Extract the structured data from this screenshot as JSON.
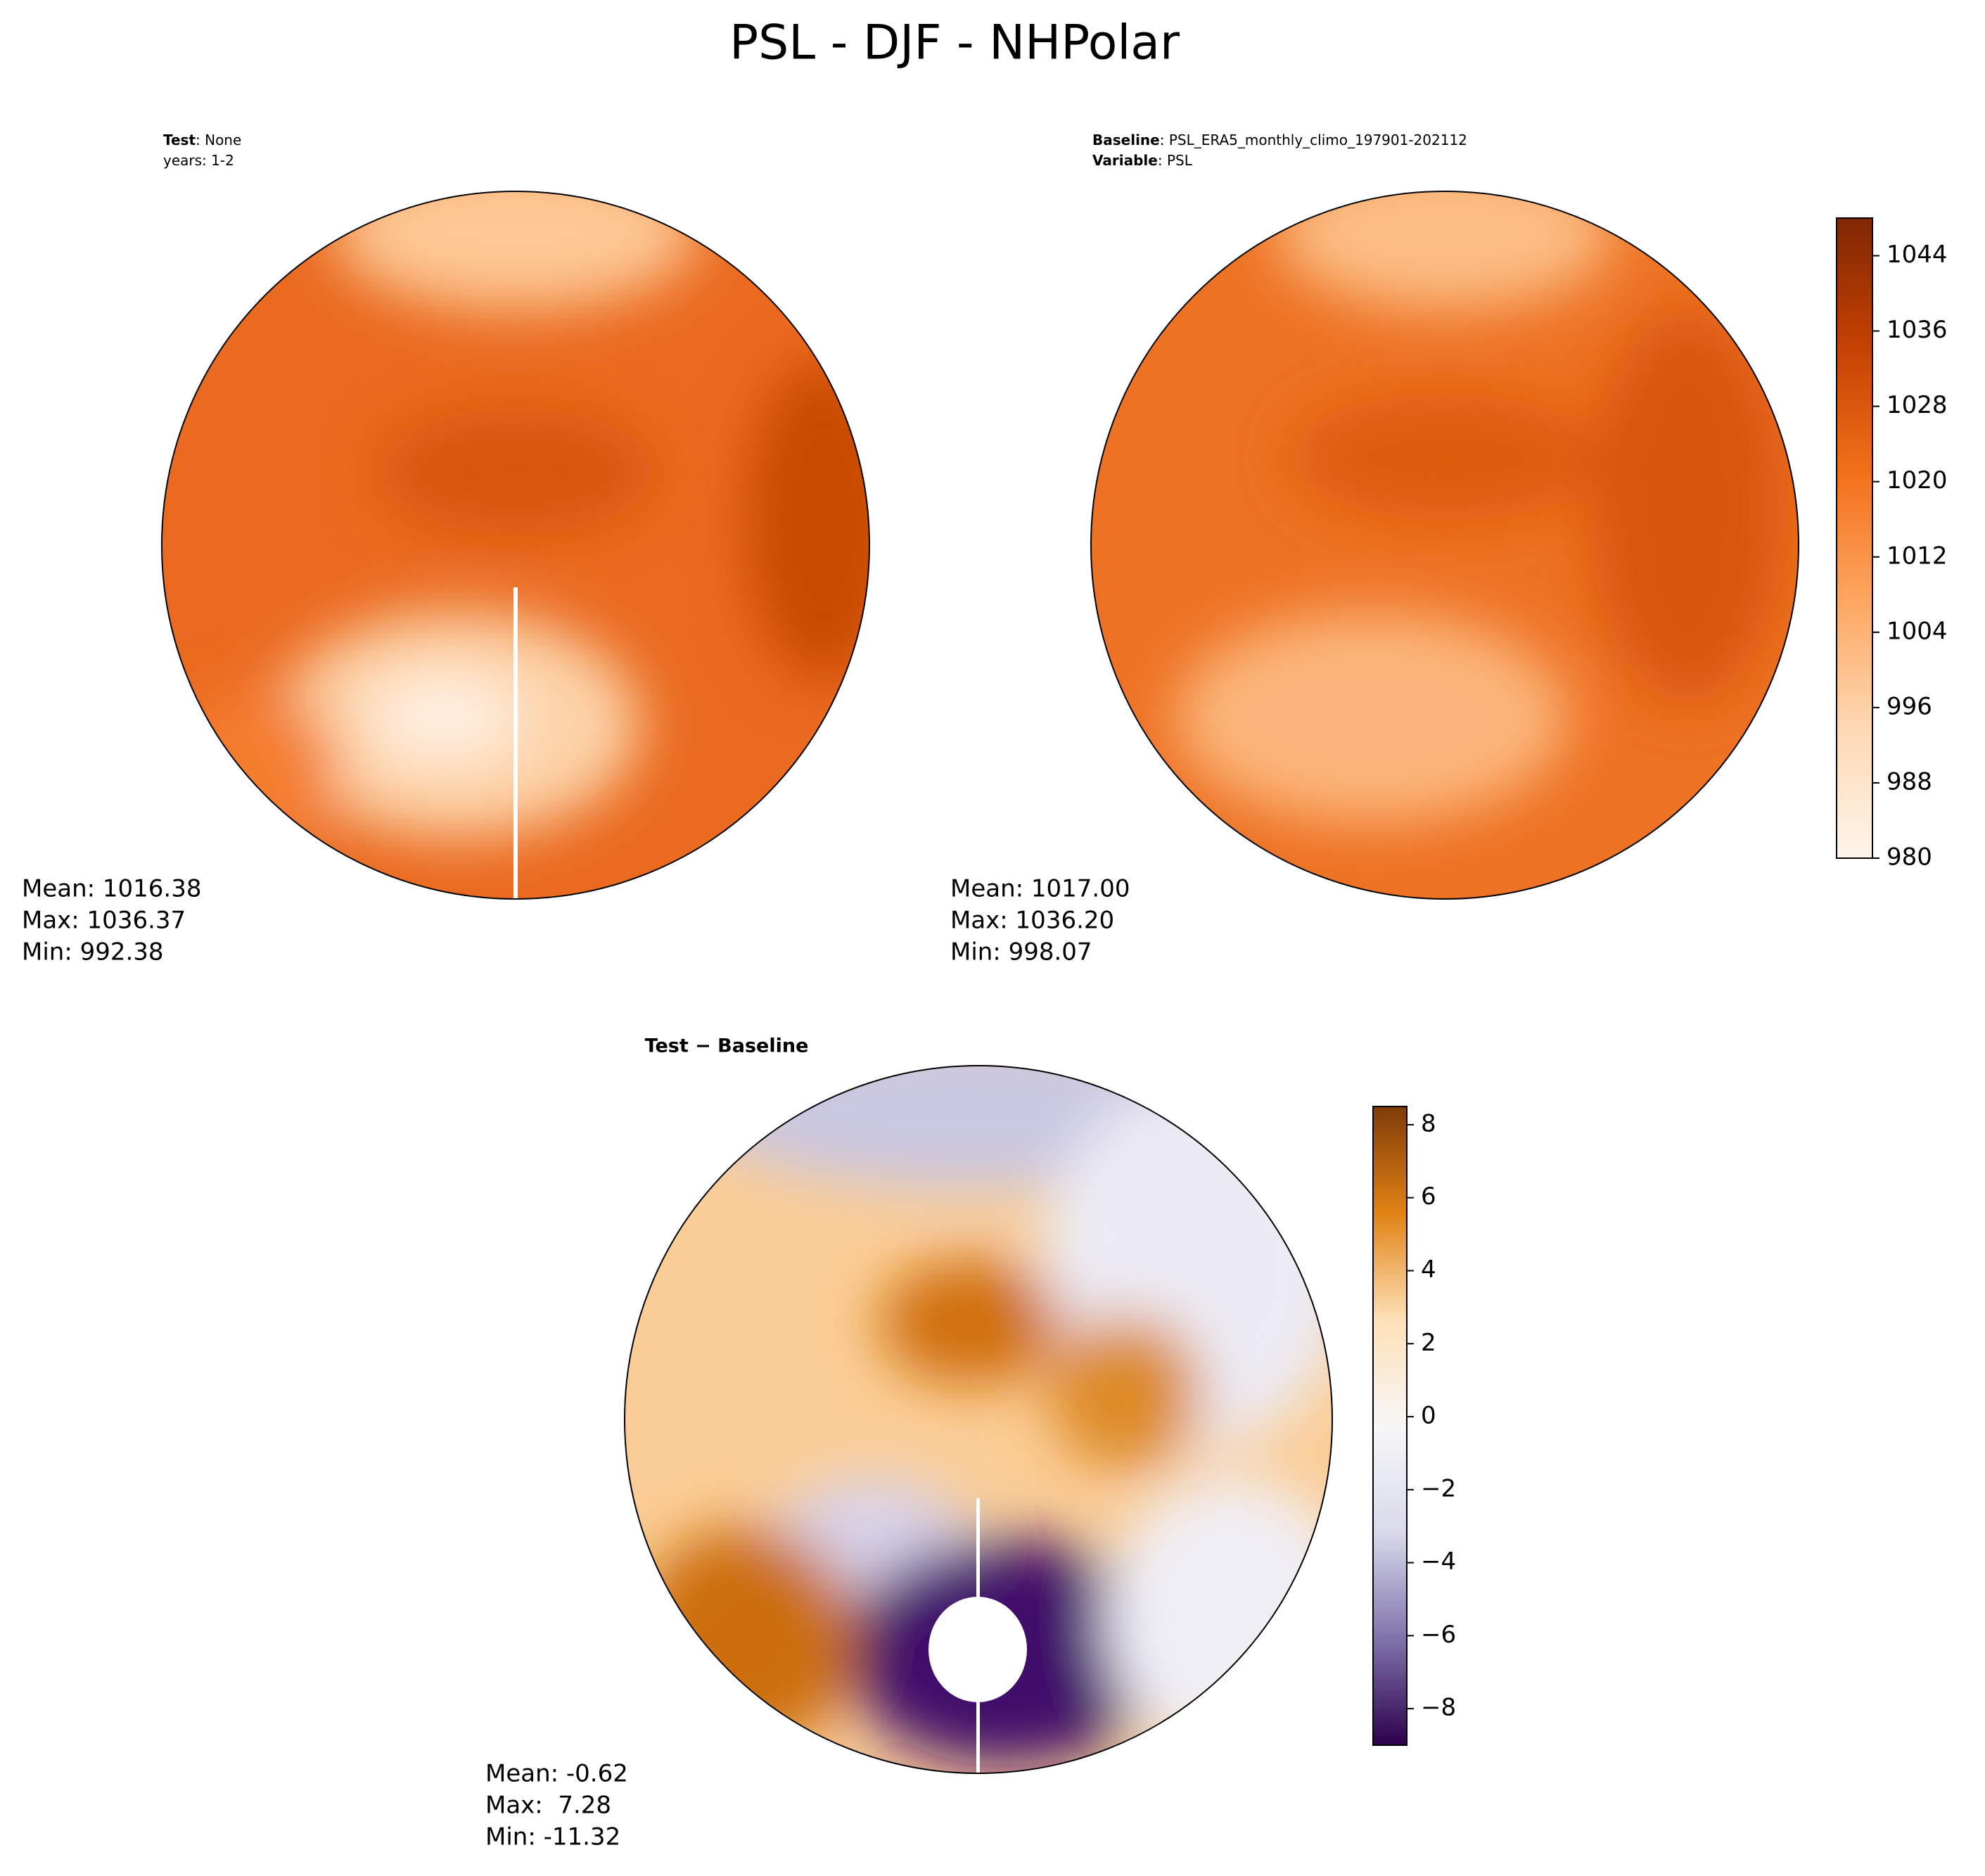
{
  "title": "PSL - DJF - NHPolar",
  "panels": [
    {
      "header": [
        {
          "bold": "Test",
          "rest": ": None"
        },
        {
          "rest": "years: 1-2"
        }
      ],
      "stats": [
        "Mean: 1016.38",
        "Max: 1036.37",
        "Min: 992.38"
      ]
    },
    {
      "header": [
        {
          "bold": "Baseline",
          "rest": ": PSL_ERA5_monthly_climo_197901-202112"
        },
        {
          "bold": "Variable",
          "rest": ": PSL"
        }
      ],
      "stats": [
        "Mean: 1017.00",
        "Max: 1036.20",
        "Min: 998.07"
      ],
      "colorbar": {
        "ylim": [
          980,
          1048
        ],
        "yticks": [
          980,
          988,
          996,
          1004,
          1012,
          1020,
          1028,
          1036,
          1044
        ],
        "colormap": [
          "#fff5eb",
          "#fdd9b4",
          "#fda762",
          "#f3701b",
          "#c54102",
          "#7f2704"
        ]
      }
    },
    {
      "subtitle": "Test − Baseline",
      "stats": [
        "Mean: -0.62",
        "Max:  7.28",
        "Min: -11.32"
      ],
      "colorbar": {
        "ylim": [
          -9,
          8.5
        ],
        "yticks": [
          {
            "value": -8,
            "label": "−8"
          },
          {
            "value": -6,
            "label": "−6"
          },
          {
            "value": -4,
            "label": "−4"
          },
          {
            "value": -2,
            "label": "−2"
          },
          0,
          2,
          4,
          6,
          8
        ],
        "colormap": [
          "#2d004b",
          "#8073ac",
          "#d8daeb",
          "#f7f7f7",
          "#fee0b6",
          "#e08214",
          "#7f3b08"
        ]
      }
    }
  ]
}
